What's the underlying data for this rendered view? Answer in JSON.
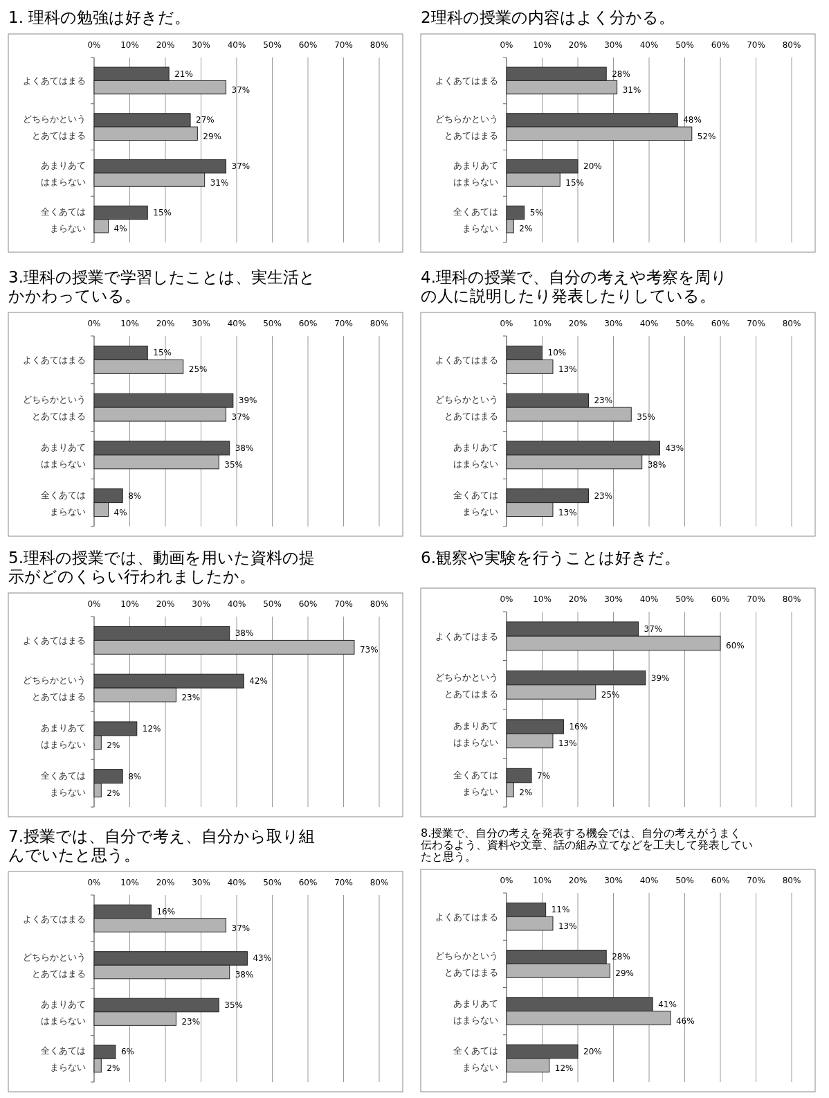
{
  "chart_data": [
    {
      "type": "bar",
      "orientation": "horizontal",
      "title": "1. 理科の勉強は好きだ。",
      "categories": [
        "よくあてはまる",
        "どちらかというとあてはまる",
        "あまりあてはまらない",
        "全くあてはまらない"
      ],
      "xlim": [
        0,
        80
      ],
      "xticks": [
        {
          "value": 0,
          "label": "0%"
        },
        {
          "value": 10,
          "label": "10%"
        },
        {
          "value": 20,
          "label": "20%"
        },
        {
          "value": 30,
          "label": "30%"
        },
        {
          "value": 40,
          "label": "40%"
        },
        {
          "value": 50,
          "label": "50%"
        },
        {
          "value": 60,
          "label": "60%"
        },
        {
          "value": 70,
          "label": "70%"
        },
        {
          "value": 80,
          "label": "80%"
        }
      ],
      "grid": "x",
      "series": [
        {
          "color": "#595959",
          "values": [
            21,
            27,
            37,
            15
          ],
          "value_labels": [
            "21%",
            "27%",
            "37%",
            "15%"
          ]
        },
        {
          "color": "#b3b3b3",
          "values": [
            37,
            29,
            31,
            4
          ],
          "value_labels": [
            "37%",
            "29%",
            "31%",
            "4%"
          ]
        }
      ]
    },
    {
      "type": "bar",
      "orientation": "horizontal",
      "title": "2理科の授業の内容はよく分かる。",
      "categories": [
        "よくあてはまる",
        "どちらかというとあてはまる",
        "あまりあてはまらない",
        "全くあてはまらない"
      ],
      "xlim": [
        0,
        80
      ],
      "xticks": [
        {
          "value": 0,
          "label": "0%"
        },
        {
          "value": 10,
          "label": "10%"
        },
        {
          "value": 20,
          "label": "20%"
        },
        {
          "value": 30,
          "label": "30%"
        },
        {
          "value": 40,
          "label": "40%"
        },
        {
          "value": 50,
          "label": "50%"
        },
        {
          "value": 60,
          "label": "60%"
        },
        {
          "value": 70,
          "label": "70%"
        },
        {
          "value": 80,
          "label": "80%"
        }
      ],
      "grid": "x",
      "series": [
        {
          "color": "#595959",
          "values": [
            28,
            48,
            20,
            5
          ],
          "value_labels": [
            "28%",
            "48%",
            "20%",
            "5%"
          ]
        },
        {
          "color": "#b3b3b3",
          "values": [
            31,
            52,
            15,
            2
          ],
          "value_labels": [
            "31%",
            "52%",
            "15%",
            "2%"
          ]
        }
      ]
    },
    {
      "type": "bar",
      "orientation": "horizontal",
      "title": "3.理科の授業で学習したことは、実生活とかかわっている。",
      "categories": [
        "よくあてはまる",
        "どちらかというとあてはまる",
        "あまりあてはまらない",
        "全くあてはまらない"
      ],
      "xlim": [
        0,
        80
      ],
      "xticks": [
        {
          "value": 0,
          "label": "0%"
        },
        {
          "value": 10,
          "label": "10%"
        },
        {
          "value": 20,
          "label": "20%"
        },
        {
          "value": 30,
          "label": "30%"
        },
        {
          "value": 40,
          "label": "40%"
        },
        {
          "value": 50,
          "label": "50%"
        },
        {
          "value": 60,
          "label": "60%"
        },
        {
          "value": 70,
          "label": "70%"
        },
        {
          "value": 80,
          "label": "80%"
        }
      ],
      "grid": "x",
      "series": [
        {
          "color": "#595959",
          "values": [
            15,
            39,
            38,
            8
          ],
          "value_labels": [
            "15%",
            "39%",
            "38%",
            "8%"
          ]
        },
        {
          "color": "#b3b3b3",
          "values": [
            25,
            37,
            35,
            4
          ],
          "value_labels": [
            "25%",
            "37%",
            "35%",
            "4%"
          ]
        }
      ]
    },
    {
      "type": "bar",
      "orientation": "horizontal",
      "title": "4.理科の授業で、自分の考えや考察を周りの人に説明したり発表したりしている。",
      "categories": [
        "よくあてはまる",
        "どちらかというとあてはまる",
        "あまりあてはまらない",
        "全くあてはまらない"
      ],
      "xlim": [
        0,
        80
      ],
      "xticks": [
        {
          "value": 0,
          "label": "0%"
        },
        {
          "value": 10,
          "label": "10%"
        },
        {
          "value": 20,
          "label": "20%"
        },
        {
          "value": 30,
          "label": "30%"
        },
        {
          "value": 40,
          "label": "40%"
        },
        {
          "value": 50,
          "label": "50%"
        },
        {
          "value": 60,
          "label": "60%"
        },
        {
          "value": 70,
          "label": "70%"
        },
        {
          "value": 80,
          "label": "80%"
        }
      ],
      "grid": "x",
      "series": [
        {
          "color": "#595959",
          "values": [
            10,
            23,
            43,
            23
          ],
          "value_labels": [
            "10%",
            "23%",
            "43%",
            "23%"
          ]
        },
        {
          "color": "#b3b3b3",
          "values": [
            13,
            35,
            38,
            13
          ],
          "value_labels": [
            "13%",
            "35%",
            "38%",
            "13%"
          ]
        }
      ]
    },
    {
      "type": "bar",
      "orientation": "horizontal",
      "title": "5.理科の授業では、動画を用いた資料の提示がどのくらい行われましたか。",
      "categories": [
        "よくあてはまる",
        "どちらかというとあてはまる",
        "あまりあてはまらない",
        "全くあてはまらない"
      ],
      "xlim": [
        0,
        80
      ],
      "xticks": [
        {
          "value": 0,
          "label": "0%"
        },
        {
          "value": 10,
          "label": "10%"
        },
        {
          "value": 20,
          "label": "20%"
        },
        {
          "value": 30,
          "label": "30%"
        },
        {
          "value": 40,
          "label": "40%"
        },
        {
          "value": 50,
          "label": "50%"
        },
        {
          "value": 60,
          "label": "60%"
        },
        {
          "value": 70,
          "label": "70%"
        },
        {
          "value": 80,
          "label": "80%"
        }
      ],
      "grid": "x",
      "series": [
        {
          "color": "#595959",
          "values": [
            38,
            42,
            12,
            8
          ],
          "value_labels": [
            "38%",
            "42%",
            "12%",
            "8%"
          ]
        },
        {
          "color": "#b3b3b3",
          "values": [
            73,
            23,
            2,
            2
          ],
          "value_labels": [
            "73%",
            "23%",
            "2%",
            "2%"
          ]
        }
      ]
    },
    {
      "type": "bar",
      "orientation": "horizontal",
      "title": "6.観察や実験を行うことは好きだ。",
      "categories": [
        "よくあてはまる",
        "どちらかというとあてはまる",
        "あまりあてはまらない",
        "全くあてはまらない"
      ],
      "xlim": [
        0,
        80
      ],
      "xticks": [
        {
          "value": 0,
          "label": "0%"
        },
        {
          "value": 10,
          "label": "10%"
        },
        {
          "value": 20,
          "label": "20%"
        },
        {
          "value": 30,
          "label": "30%"
        },
        {
          "value": 40,
          "label": "40%"
        },
        {
          "value": 50,
          "label": "50%"
        },
        {
          "value": 60,
          "label": "60%"
        },
        {
          "value": 70,
          "label": "70%"
        },
        {
          "value": 80,
          "label": "80%"
        }
      ],
      "grid": "x",
      "series": [
        {
          "color": "#595959",
          "values": [
            37,
            39,
            16,
            7
          ],
          "value_labels": [
            "37%",
            "39%",
            "16%",
            "7%"
          ]
        },
        {
          "color": "#b3b3b3",
          "values": [
            60,
            25,
            13,
            2
          ],
          "value_labels": [
            "60%",
            "25%",
            "13%",
            "2%"
          ]
        }
      ]
    },
    {
      "type": "bar",
      "orientation": "horizontal",
      "title": "7.授業では、自分で考え、自分から取り組んでいたと思う。",
      "categories": [
        "よくあてはまる",
        "どちらかというとあてはまる",
        "あまりあてはまらない",
        "全くあてはまらない"
      ],
      "xlim": [
        0,
        80
      ],
      "xticks": [
        {
          "value": 0,
          "label": "0%"
        },
        {
          "value": 10,
          "label": "10%"
        },
        {
          "value": 20,
          "label": "20%"
        },
        {
          "value": 30,
          "label": "30%"
        },
        {
          "value": 40,
          "label": "40%"
        },
        {
          "value": 50,
          "label": "50%"
        },
        {
          "value": 60,
          "label": "60%"
        },
        {
          "value": 70,
          "label": "70%"
        },
        {
          "value": 80,
          "label": "80%"
        }
      ],
      "grid": "x",
      "series": [
        {
          "color": "#595959",
          "values": [
            16,
            43,
            35,
            6
          ],
          "value_labels": [
            "16%",
            "43%",
            "35%",
            "6%"
          ]
        },
        {
          "color": "#b3b3b3",
          "values": [
            37,
            38,
            23,
            2
          ],
          "value_labels": [
            "37%",
            "38%",
            "23%",
            "2%"
          ]
        }
      ]
    },
    {
      "type": "bar",
      "orientation": "horizontal",
      "title": "8.授業で、自分の考えを発表する機会では、自分の考えがうまく伝わるよう、資料や文章、話の組み立てなどを工夫して発表していたと思う。",
      "categories": [
        "よくあてはまる",
        "どちらかというとあてはまる",
        "あまりあてはまらない",
        "全くあてはまらない"
      ],
      "xlim": [
        0,
        80
      ],
      "xticks": [
        {
          "value": 0,
          "label": "0%"
        },
        {
          "value": 10,
          "label": "10%"
        },
        {
          "value": 20,
          "label": "20%"
        },
        {
          "value": 30,
          "label": "30%"
        },
        {
          "value": 40,
          "label": "40%"
        },
        {
          "value": 50,
          "label": "50%"
        },
        {
          "value": 60,
          "label": "60%"
        },
        {
          "value": 70,
          "label": "70%"
        },
        {
          "value": 80,
          "label": "80%"
        }
      ],
      "grid": "x",
      "series": [
        {
          "color": "#595959",
          "values": [
            11,
            28,
            41,
            20
          ],
          "value_labels": [
            "11%",
            "28%",
            "41%",
            "20%"
          ]
        },
        {
          "color": "#b3b3b3",
          "values": [
            13,
            29,
            46,
            12
          ],
          "value_labels": [
            "13%",
            "29%",
            "46%",
            "12%"
          ]
        }
      ]
    }
  ]
}
